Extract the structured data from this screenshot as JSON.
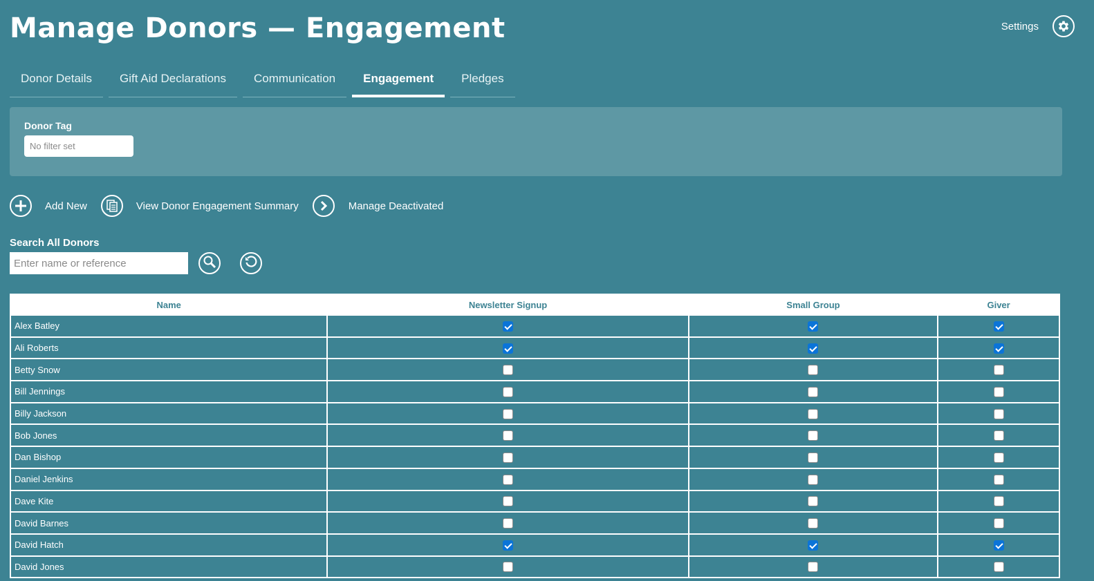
{
  "header": {
    "title": "Manage Donors — Engagement",
    "settings_label": "Settings"
  },
  "tabs": [
    {
      "label": "Donor Details",
      "active": false
    },
    {
      "label": "Gift Aid Declarations",
      "active": false
    },
    {
      "label": "Communication",
      "active": false
    },
    {
      "label": "Engagement",
      "active": true
    },
    {
      "label": "Pledges",
      "active": false
    }
  ],
  "filter": {
    "label": "Donor Tag",
    "placeholder": "No filter set"
  },
  "actions": [
    {
      "label": "Add New",
      "icon": "plus-icon"
    },
    {
      "label": "View Donor Engagement Summary",
      "icon": "document-icon"
    },
    {
      "label": "Manage Deactivated",
      "icon": "chevron-right-icon"
    }
  ],
  "search": {
    "label": "Search All Donors",
    "placeholder": "Enter name or reference",
    "search_icon": "magnifier-icon",
    "reset_icon": "refresh-icon"
  },
  "table": {
    "columns": [
      "Name",
      "Newsletter Signup",
      "Small Group",
      "Giver"
    ],
    "rows": [
      {
        "name": "Alex Batley",
        "newsletter": true,
        "small_group": true,
        "giver": true
      },
      {
        "name": "Ali Roberts",
        "newsletter": true,
        "small_group": true,
        "giver": true
      },
      {
        "name": "Betty Snow",
        "newsletter": false,
        "small_group": false,
        "giver": false
      },
      {
        "name": "Bill Jennings",
        "newsletter": false,
        "small_group": false,
        "giver": false
      },
      {
        "name": "Billy Jackson",
        "newsletter": false,
        "small_group": false,
        "giver": false
      },
      {
        "name": "Bob Jones",
        "newsletter": false,
        "small_group": false,
        "giver": false
      },
      {
        "name": "Dan Bishop",
        "newsletter": false,
        "small_group": false,
        "giver": false
      },
      {
        "name": "Daniel Jenkins",
        "newsletter": false,
        "small_group": false,
        "giver": false
      },
      {
        "name": "Dave Kite",
        "newsletter": false,
        "small_group": false,
        "giver": false
      },
      {
        "name": "David Barnes",
        "newsletter": false,
        "small_group": false,
        "giver": false
      },
      {
        "name": "David Hatch",
        "newsletter": true,
        "small_group": true,
        "giver": true
      },
      {
        "name": "David Jones",
        "newsletter": false,
        "small_group": false,
        "giver": false
      }
    ]
  },
  "colors": {
    "background": "#3d8393",
    "panel": "#5e98a4",
    "checkbox_checked": "#0b74d8"
  }
}
